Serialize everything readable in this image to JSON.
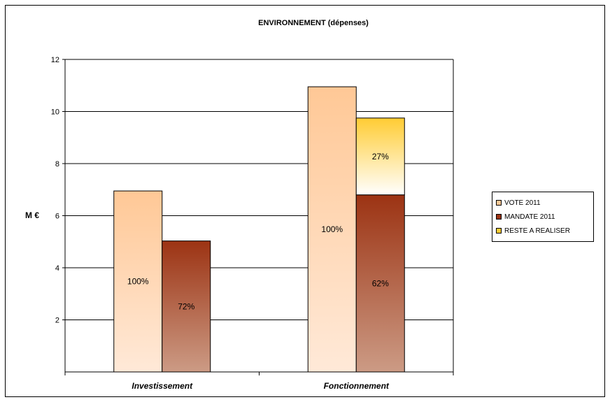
{
  "chart_data": {
    "type": "bar",
    "title": "ENVIRONNEMENT (dépenses)",
    "ylabel": "M €",
    "xlabel": "",
    "ylim": [
      0,
      12
    ],
    "yticks": [
      2,
      4,
      6,
      8,
      10,
      12
    ],
    "grid": true,
    "legend_position": "right",
    "categories": [
      "Investissement",
      "Fonctionnement"
    ],
    "series": [
      {
        "name": "VOTE 2011",
        "values": [
          6.95,
          10.95
        ],
        "labels": [
          "100%",
          "100%"
        ],
        "color": "#FFC896"
      },
      {
        "name": "MANDATE 2011",
        "values": [
          5.03,
          6.8
        ],
        "labels": [
          "72%",
          "62%"
        ],
        "color": "#9C3313"
      },
      {
        "name": "RESTE A REALISER",
        "values": [
          0,
          2.95
        ],
        "labels": [
          "",
          "27%"
        ],
        "color": "#FFCC33"
      }
    ]
  }
}
